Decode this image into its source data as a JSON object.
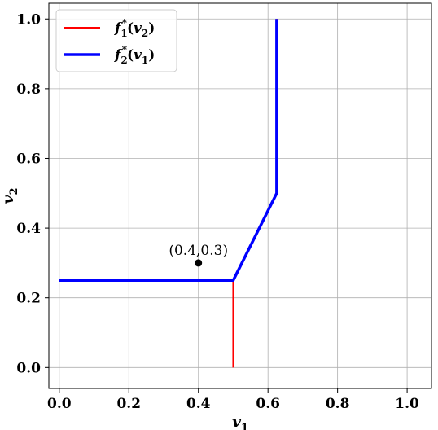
{
  "chart_data": {
    "type": "line",
    "xlabel": "v1",
    "ylabel": "v2",
    "xlim": [
      -0.03,
      1.07
    ],
    "ylim": [
      -0.06,
      1.045
    ],
    "xticks": [
      0.0,
      0.2,
      0.4,
      0.6,
      0.8,
      1.0
    ],
    "xtick_labels": [
      "0.0",
      "0.2",
      "0.4",
      "0.6",
      "0.8",
      "1.0"
    ],
    "yticks": [
      0.0,
      0.2,
      0.4,
      0.6,
      0.8,
      1.0
    ],
    "ytick_labels": [
      "0.0",
      "0.2",
      "0.4",
      "0.6",
      "0.8",
      "1.0"
    ],
    "grid": true,
    "legend_position": "top-left",
    "series": [
      {
        "name": "f1*(v2)",
        "name_main": "f",
        "name_sub": "1",
        "name_sup": "*",
        "name_arg": "v",
        "name_arg_sub": "2",
        "color": "#ff0000",
        "x": [
          0.5,
          0.5,
          0.625,
          0.625
        ],
        "y": [
          0.0,
          0.25,
          0.5,
          1.0
        ]
      },
      {
        "name": "f2*(v1)",
        "name_main": "f",
        "name_sub": "2",
        "name_sup": "*",
        "name_arg": "v",
        "name_arg_sub": "1",
        "color": "#0000ff",
        "x": [
          0.0,
          0.5,
          0.625,
          0.625
        ],
        "y": [
          0.25,
          0.25,
          0.5,
          1.0
        ]
      }
    ],
    "points": [
      {
        "x": 0.4,
        "y": 0.3,
        "label": "(0.4,0.3)",
        "color": "#000000"
      }
    ]
  }
}
